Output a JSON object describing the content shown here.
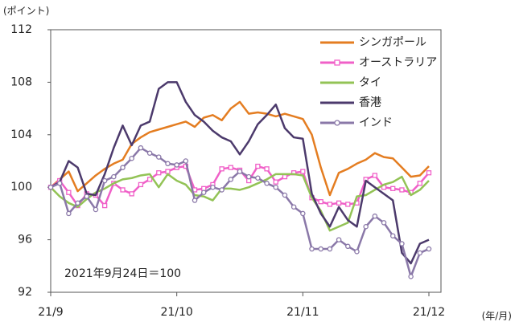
{
  "chart_data": {
    "type": "line",
    "y_unit_label": "(ポイント)",
    "x_unit_label": "(年/月)",
    "annotation": "2021年9月24日＝100",
    "categories": [
      "21/9",
      null,
      null,
      null,
      null,
      null,
      null,
      null,
      null,
      null,
      null,
      null,
      null,
      null,
      "21/10",
      null,
      null,
      null,
      null,
      null,
      null,
      null,
      null,
      null,
      null,
      null,
      null,
      null,
      "21/11",
      null,
      null,
      null,
      null,
      null,
      null,
      null,
      null,
      null,
      null,
      null,
      null,
      null,
      "21/12"
    ],
    "ylim": [
      92,
      112
    ],
    "yticks": [
      92,
      96,
      100,
      104,
      108,
      112
    ],
    "legend": "upper-right",
    "series": [
      {
        "name": "シンガポール",
        "color": "#e47d21",
        "marker": "none",
        "values": [
          100,
          100.6,
          101.2,
          99.7,
          100.3,
          100.9,
          101.4,
          101.8,
          102.1,
          103.3,
          103.8,
          104.2,
          104.4,
          104.6,
          104.8,
          105,
          104.6,
          105.3,
          105.5,
          105.1,
          106,
          106.5,
          105.6,
          105.7,
          105.6,
          105.4,
          105.6,
          105.4,
          105.2,
          104,
          101.5,
          99.4,
          101.1,
          101.4,
          101.8,
          102.1,
          102.6,
          102.3,
          102.2,
          101.5,
          100.8,
          100.9,
          101.6
        ]
      },
      {
        "name": "オーストラリア",
        "color": "#f060c8",
        "marker": "square",
        "values": [
          100,
          100.5,
          99.6,
          98.6,
          99.5,
          99.4,
          98.6,
          100.3,
          99.8,
          99.5,
          100.2,
          100.6,
          101.1,
          101.2,
          101.5,
          101.6,
          99.8,
          99.9,
          100.2,
          101.4,
          101.5,
          101.3,
          100.5,
          101.6,
          101.4,
          100.4,
          100.8,
          101.1,
          101.2,
          99.2,
          98.9,
          98.7,
          98.8,
          98.7,
          98.8,
          100.6,
          100.9,
          100,
          99.9,
          99.8,
          99.6,
          100.3,
          101.1
        ]
      },
      {
        "name": "タイ",
        "color": "#93c356",
        "marker": "none",
        "values": [
          100,
          99.3,
          98.8,
          98.5,
          99.1,
          99.6,
          99.9,
          100.3,
          100.6,
          100.7,
          100.9,
          101,
          100,
          101,
          100.5,
          100.2,
          99.4,
          99.3,
          99,
          99.9,
          99.9,
          99.8,
          100,
          100.3,
          100.6,
          101,
          101,
          101,
          100.9,
          99.2,
          98.2,
          96.7,
          97,
          97.3,
          99.3,
          99.4,
          99.8,
          100.2,
          100.4,
          100.8,
          99.4,
          99.8,
          100.5
        ]
      },
      {
        "name": "香港",
        "color": "#4c3a6c",
        "marker": "none",
        "values": [
          100,
          100.4,
          102,
          101.5,
          99.5,
          99.4,
          101,
          103,
          104.7,
          103.2,
          104.7,
          105,
          107.5,
          108,
          108,
          106.5,
          105.5,
          105,
          104.3,
          103.8,
          103.5,
          102.5,
          103.5,
          104.8,
          105.5,
          106.3,
          104.5,
          103.8,
          103.7,
          99.5,
          98,
          97,
          98.5,
          97.5,
          97,
          100.5,
          100,
          99.5,
          99,
          95,
          94.2,
          95.7,
          96
        ]
      },
      {
        "name": "インド",
        "color": "#8a78a8",
        "marker": "circle",
        "values": [
          100,
          100.3,
          98,
          98.8,
          99.3,
          98.3,
          100.5,
          100.8,
          101.5,
          102.2,
          103,
          102.6,
          102.3,
          101.8,
          101.7,
          102,
          99,
          99.6,
          100,
          99.8,
          100.6,
          101.2,
          100.8,
          100.7,
          100.3,
          100,
          99.4,
          98.5,
          98,
          95.3,
          95.3,
          95.3,
          96,
          95.5,
          95.1,
          97,
          97.8,
          97.3,
          96.3,
          95.7,
          93.2,
          95,
          95.3
        ]
      }
    ]
  }
}
